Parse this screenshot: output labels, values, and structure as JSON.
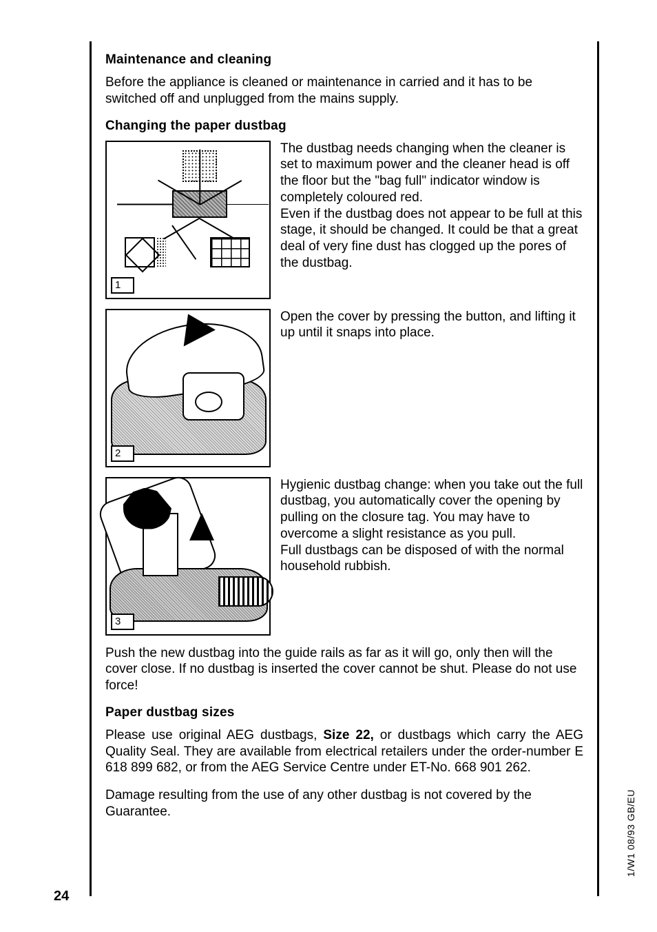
{
  "page_number": "24",
  "side_code": "1/W1 08/93 GB/EU",
  "sections": {
    "maintenance": {
      "heading": "Maintenance and cleaning",
      "intro": "Before the appliance is cleaned or maintenance in carried and it has to be switched off and unplugged from the mains supply."
    },
    "changing": {
      "heading": "Changing the paper dustbag",
      "fig1_label": "1",
      "fig1_text": "The dustbag needs changing when the cleaner is set to maximum power and the cleaner head is off the floor but the \"bag full\" indicator window is completely coloured red.\nEven if the dustbag does not appear to be full at this stage, it should be changed. It could be that a great deal of very fine dust has clogged up the pores of the dustbag.",
      "fig2_label": "2",
      "fig2_text": "Open the cover by pressing the button, and lifting it up until it snaps into place.",
      "fig3_label": "3",
      "fig3_text": "Hygienic dustbag change: when you take out the full dustbag, you automatically cover the opening by pulling on the closure tag. You may have to overcome a slight resistance as you pull.\nFull dustbags can be disposed of with the normal household rubbish.",
      "after": "Push the new dustbag into the guide rails as far as it will go, only then will the cover close. If no dustbag is inserted the cover cannot be shut. Please do not use force!"
    },
    "sizes": {
      "heading": "Paper dustbag sizes",
      "p_before": "Please use original AEG dustbags, ",
      "p_bold": "Size 22,",
      "p_after": " or dustbags which carry the AEG Quality Seal. They are available from electrical retailers under the order-number E 618 899 682, or from the AEG Service Centre under ET-No. 668 901 262.",
      "p2": "Damage resulting from the use of any other dustbag is not covered by the Guarantee."
    }
  }
}
